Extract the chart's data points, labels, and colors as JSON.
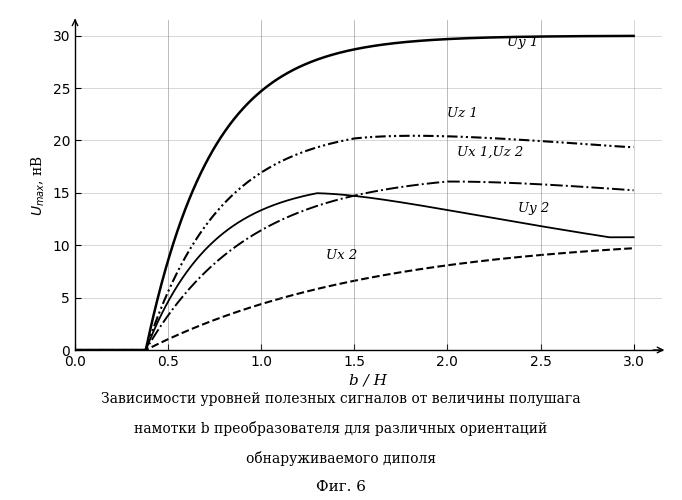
{
  "xlabel": "b / H",
  "ylabel": "$U_{max}$, нВ",
  "xlim": [
    0,
    3.15
  ],
  "ylim": [
    0,
    31.5
  ],
  "xticks": [
    0,
    0.5,
    1.0,
    1.5,
    2.0,
    2.5,
    3.0
  ],
  "yticks": [
    0,
    5,
    10,
    15,
    20,
    25,
    30
  ],
  "vlines": [
    0.5,
    1.0,
    1.5,
    2.0,
    2.5
  ],
  "label_Uy1": "Uy 1",
  "label_Uz1": "Uz 1",
  "label_Ux1Uz2": "Ux 1,Uz 2",
  "label_Uy2": "Uy 2",
  "label_Ux2": "Ux 2",
  "caption_line1": "Зависимости уровней полезных сигналов от величины полушага",
  "caption_line2": "намотки b преобразователя для различных ориентаций",
  "caption_line3": "обнаруживаемого диполя",
  "fig_label": "Фиг. 6"
}
